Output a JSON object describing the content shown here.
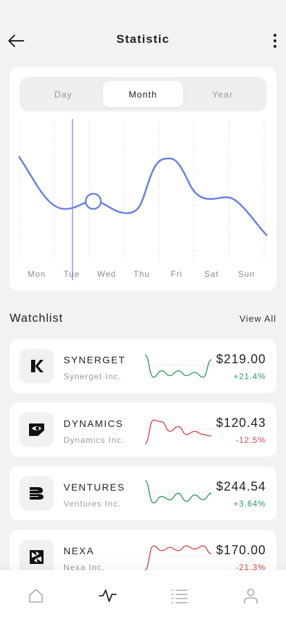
{
  "header": {
    "title": "Statistic"
  },
  "periods": {
    "day": "Day",
    "month": "Month",
    "year": "Year",
    "selected": "Month"
  },
  "chart_data": {
    "type": "line",
    "categories": [
      "Mon",
      "Tue",
      "Wed",
      "Thu",
      "Fri",
      "Sat",
      "Sun"
    ],
    "title": "",
    "xlabel": "",
    "ylabel": "",
    "grid": "vertical dashed",
    "highlighted_category": "Tue",
    "color": "#6b82e0"
  },
  "watchlist": {
    "title": "Watchlist",
    "view_all": "View All",
    "items": [
      {
        "ticker": "SYNERGET",
        "company": "Synerget Inc.",
        "price": "$219.00",
        "change": "+21.4%",
        "trend": "up",
        "spark": [
          0.85,
          0.15,
          0.35,
          0.2,
          0.35,
          0.2,
          0.3,
          0.15,
          0.7
        ]
      },
      {
        "ticker": "DYNAMICS",
        "company": "Dynamics Inc.",
        "price": "$120.43",
        "change": "-12.5%",
        "trend": "down",
        "spark": [
          0.05,
          0.8,
          0.75,
          0.45,
          0.6,
          0.35,
          0.45,
          0.35,
          0.3
        ]
      },
      {
        "ticker": "VENTURES",
        "company": "Ventures Inc.",
        "price": "$244.54",
        "change": "+3.64%",
        "trend": "up",
        "spark": [
          0.9,
          0.2,
          0.4,
          0.3,
          0.5,
          0.25,
          0.45,
          0.3,
          0.5
        ]
      },
      {
        "ticker": "NEXA",
        "company": "Nexa Inc.",
        "price": "$170.00",
        "change": "-21.3%",
        "trend": "down",
        "spark": [
          0.1,
          0.85,
          0.7,
          0.8,
          0.7,
          0.85,
          0.75,
          0.85,
          0.6
        ]
      }
    ]
  },
  "colors": {
    "accent": "#6b82e0",
    "positive": "#2a9d5c",
    "negative": "#d0474b"
  },
  "tabbar": [
    "home-icon",
    "activity-icon",
    "list-icon",
    "profile-icon"
  ],
  "selected_tab": "activity-icon"
}
